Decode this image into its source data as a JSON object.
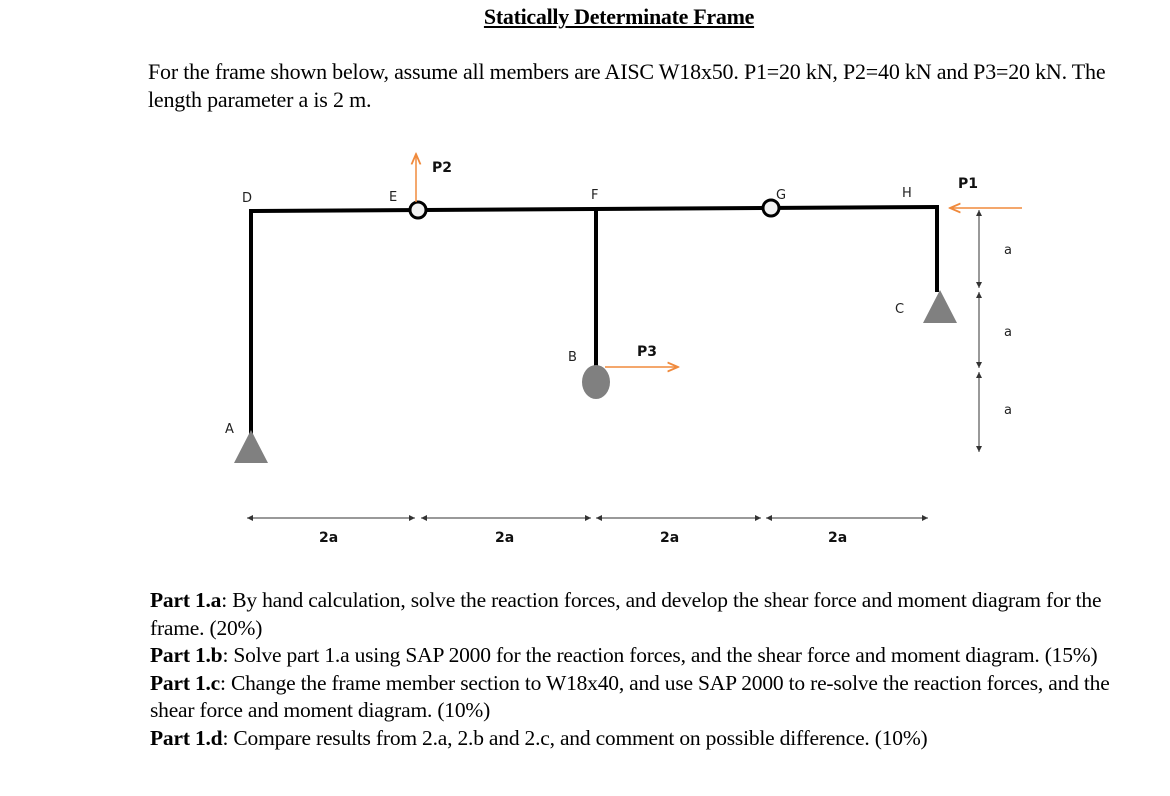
{
  "title": "Statically Determinate Frame",
  "intro": "For the frame shown below, assume all members are AISC W18x50. P1=20 kN, P2=40 kN and P3=20 kN. The length parameter a is 2 m.",
  "diagram": {
    "nodes": {
      "A": "A",
      "B": "B",
      "C": "C",
      "D": "D",
      "E": "E",
      "F": "F",
      "G": "G",
      "H": "H"
    },
    "loads": {
      "P1": "P1",
      "P2": "P2",
      "P3": "P3"
    },
    "dims_horizontal": [
      "2a",
      "2a",
      "2a",
      "2a"
    ],
    "dims_vertical": [
      "a",
      "a",
      "a"
    ],
    "colors": {
      "member": "#000000",
      "load": "#f08a3c",
      "support": "#808080",
      "dimension": "#333333"
    }
  },
  "parts": [
    {
      "label": "Part 1.a",
      "text": ": By hand calculation, solve the reaction forces, and develop the shear force and moment diagram for the frame. (20%)"
    },
    {
      "label": "Part 1.b",
      "text": ": Solve part 1.a using SAP 2000 for the reaction forces, and the shear force and moment diagram. (15%)"
    },
    {
      "label": "Part 1.c",
      "text": ": Change the frame member section to W18x40, and use SAP 2000 to re-solve the reaction forces, and the shear force and moment diagram. (10%)"
    },
    {
      "label": "Part 1.d",
      "text": ": Compare results from 2.a, 2.b and 2.c, and comment on possible difference. (10%)"
    }
  ]
}
